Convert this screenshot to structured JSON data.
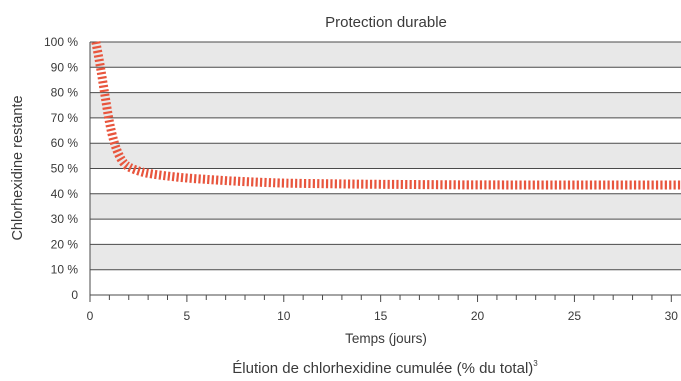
{
  "chart_data": {
    "type": "line",
    "title": "Protection durable",
    "xlabel": "Temps (jours)",
    "ylabel": "Chlorhexidine restante",
    "caption": "Élution de chlorhexidine cumulée (% du total)",
    "caption_sup": "3",
    "xlim": [
      0,
      30.5
    ],
    "ylim": [
      0,
      100
    ],
    "x_ticks": [
      0,
      5,
      10,
      15,
      20,
      25,
      30
    ],
    "x_minor_step": 1,
    "y_ticks": [
      0,
      10,
      20,
      30,
      40,
      50,
      60,
      70,
      80,
      90,
      100
    ],
    "y_tick_labels": [
      "0",
      "10 %",
      "20 %",
      "30 %",
      "40 %",
      "50 %",
      "60 %",
      "70 %",
      "80 %",
      "90 %",
      "100 %"
    ],
    "grid": "horizontal bands",
    "band_color": "#e8e8e8",
    "series": [
      {
        "color": "#e8553d",
        "style": "dashed-thick",
        "x": [
          0.3,
          0.5,
          0.75,
          1.0,
          1.25,
          1.5,
          1.75,
          2.0,
          2.5,
          3.0,
          4.0,
          5.0,
          6.0,
          7.0,
          8.0,
          9.0,
          10.0,
          12.0,
          14.0,
          16.0,
          18.0,
          20.0,
          25.0,
          30.5
        ],
        "y": [
          100,
          92,
          80,
          68,
          60,
          55,
          52,
          50.5,
          49,
          48,
          47,
          46.2,
          45.7,
          45.2,
          44.8,
          44.5,
          44.2,
          44,
          43.8,
          43.7,
          43.6,
          43.5,
          43.5,
          43.5
        ]
      }
    ]
  }
}
